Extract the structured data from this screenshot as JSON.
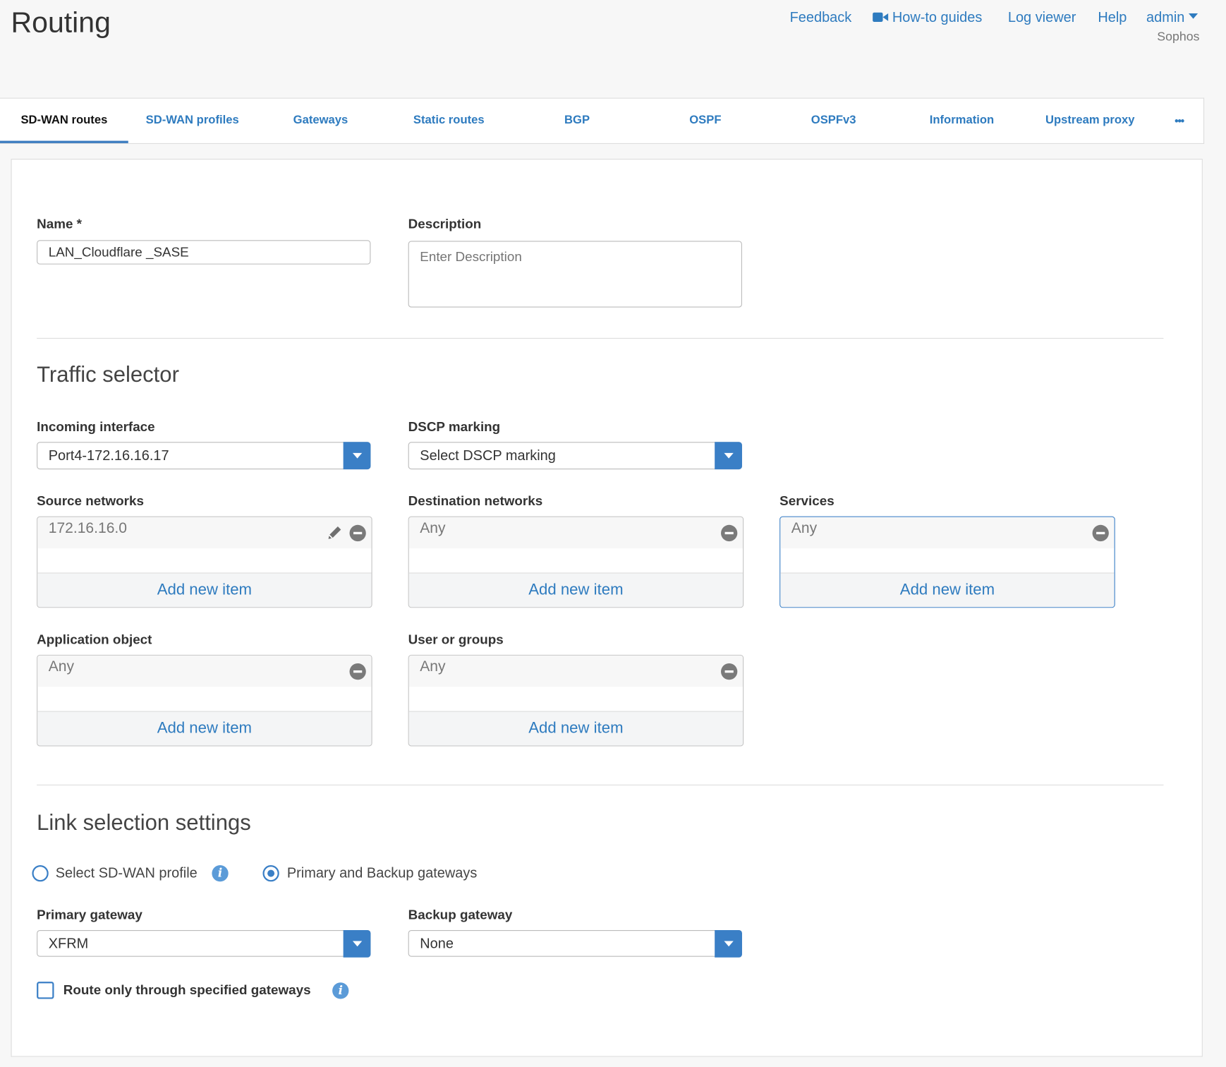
{
  "page_title": "Routing",
  "top_links": {
    "feedback": "Feedback",
    "howto": "How-to guides",
    "logviewer": "Log viewer",
    "help": "Help",
    "admin": "admin",
    "org": "Sophos"
  },
  "tabs": [
    {
      "label": "SD-WAN routes",
      "active": true
    },
    {
      "label": "SD-WAN profiles"
    },
    {
      "label": "Gateways"
    },
    {
      "label": "Static routes"
    },
    {
      "label": "BGP"
    },
    {
      "label": "OSPF"
    },
    {
      "label": "OSPFv3"
    },
    {
      "label": "Information"
    },
    {
      "label": "Upstream proxy"
    }
  ],
  "more_tabs": "•••",
  "form": {
    "name_label": "Name *",
    "name_value": "LAN_Cloudflare _SASE",
    "description_label": "Description",
    "description_placeholder": "Enter Description",
    "traffic_heading": "Traffic selector",
    "incoming_label": "Incoming interface",
    "incoming_value": "Port4-172.16.16.17",
    "dscp_label": "DSCP marking",
    "dscp_value": "Select DSCP marking",
    "add_new": "Add new item",
    "source_label": "Source networks",
    "source_value": "172.16.16.0",
    "dest_label": "Destination networks",
    "dest_value": "Any",
    "services_label": "Services",
    "services_value": "Any",
    "app_label": "Application object",
    "app_value": "Any",
    "users_label": "User or groups",
    "users_value": "Any",
    "link_heading": "Link selection settings",
    "radio_profile": "Select SD-WAN profile",
    "radio_gateways": "Primary and Backup gateways",
    "selected_radio": "Primary and Backup gateways",
    "primary_label": "Primary gateway",
    "primary_value": "XFRM",
    "backup_label": "Backup gateway",
    "backup_value": "None",
    "route_only_label": "Route only through specified gateways",
    "route_only_checked": false
  },
  "colors": {
    "accent": "#3a7fc6",
    "link": "#2e7bbf"
  }
}
